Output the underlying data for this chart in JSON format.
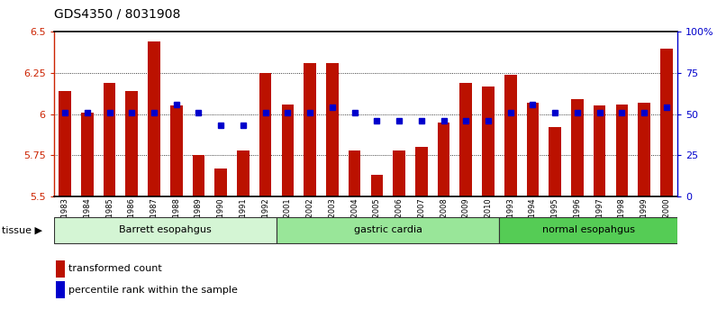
{
  "title": "GDS4350 / 8031908",
  "samples": [
    "GSM851983",
    "GSM851984",
    "GSM851985",
    "GSM851986",
    "GSM851987",
    "GSM851988",
    "GSM851989",
    "GSM851990",
    "GSM851991",
    "GSM851992",
    "GSM852001",
    "GSM852002",
    "GSM852003",
    "GSM852004",
    "GSM852005",
    "GSM852006",
    "GSM852007",
    "GSM852008",
    "GSM852009",
    "GSM852010",
    "GSM851993",
    "GSM851994",
    "GSM851995",
    "GSM851996",
    "GSM851997",
    "GSM851998",
    "GSM851999",
    "GSM852000"
  ],
  "bar_values": [
    6.14,
    6.01,
    6.19,
    6.14,
    6.44,
    6.05,
    5.75,
    5.67,
    5.78,
    6.25,
    6.06,
    6.31,
    6.31,
    5.78,
    5.63,
    5.78,
    5.8,
    5.95,
    6.19,
    6.17,
    6.24,
    6.07,
    5.92,
    6.09,
    6.05,
    6.06,
    6.07,
    6.4
  ],
  "dot_y_values": [
    6.01,
    6.01,
    6.01,
    6.01,
    6.01,
    6.06,
    6.01,
    5.93,
    5.93,
    6.01,
    6.01,
    6.01,
    6.04,
    6.01,
    5.96,
    5.96,
    5.96,
    5.96,
    5.96,
    5.96,
    6.01,
    6.06,
    6.01,
    6.01,
    6.01,
    6.01,
    6.01,
    6.04
  ],
  "groups": [
    {
      "label": "Barrett esopahgus",
      "start": 0,
      "end": 9,
      "color": "#d4f5d4"
    },
    {
      "label": "gastric cardia",
      "start": 10,
      "end": 19,
      "color": "#99e699"
    },
    {
      "label": "normal esopahgus",
      "start": 20,
      "end": 27,
      "color": "#55cc55"
    }
  ],
  "ylim": [
    5.5,
    6.5
  ],
  "yticks_left": [
    5.5,
    5.75,
    6.0,
    6.25,
    6.5
  ],
  "yticks_right": [
    0,
    25,
    50,
    75,
    100
  ],
  "bar_color": "#bb1100",
  "dot_color": "#0000cc",
  "background_color": "#ffffff",
  "left_tick_color": "#cc2200",
  "right_tick_color": "#0000cc",
  "tick_label_color_left": "#cc2200",
  "tick_label_color_right": "#0000cc"
}
